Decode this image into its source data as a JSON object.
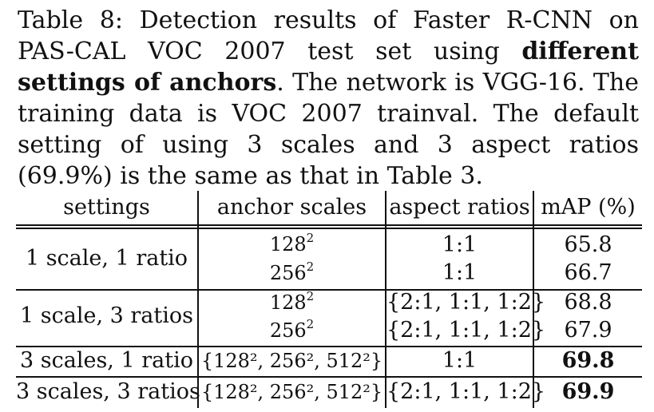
{
  "caption": {
    "label": "Table 8:",
    "pre": "Detection results of Faster R-CNN on PAS-CAL VOC 2007 test set using",
    "emph": "different settings of anchors",
    "post": ". The network is VGG-16. The training data is VOC 2007 trainval. The default setting of using 3 scales and 3 aspect ratios (69.9%) is the same as that in Table 3."
  },
  "table": {
    "headers": [
      "settings",
      "anchor scales",
      "aspect ratios",
      "mAP (%)"
    ],
    "groups": [
      {
        "setting": "1 scale, 1 ratio",
        "rows": [
          {
            "scale": "128",
            "exp": "2",
            "ratio": "1:1",
            "map": "65.8"
          },
          {
            "scale": "256",
            "exp": "2",
            "ratio": "1:1",
            "map": "66.7"
          }
        ]
      },
      {
        "setting": "1 scale, 3 ratios",
        "rows": [
          {
            "scale": "128",
            "exp": "2",
            "ratio": "{2:1, 1:1, 1:2}",
            "map": "68.8"
          },
          {
            "scale": "256",
            "exp": "2",
            "ratio": "{2:1, 1:1, 1:2}",
            "map": "67.9"
          }
        ]
      },
      {
        "setting": "3 scales, 1 ratio",
        "rows": [
          {
            "scale": "{128², 256², 512²}",
            "ratio": "1:1",
            "map": "69.8",
            "bold": true
          }
        ]
      },
      {
        "setting": "3 scales, 3 ratios",
        "rows": [
          {
            "scale": "{128², 256², 512²}",
            "ratio": "{2:1, 1:1, 1:2}",
            "map": "69.9",
            "bold": true
          }
        ]
      }
    ]
  }
}
